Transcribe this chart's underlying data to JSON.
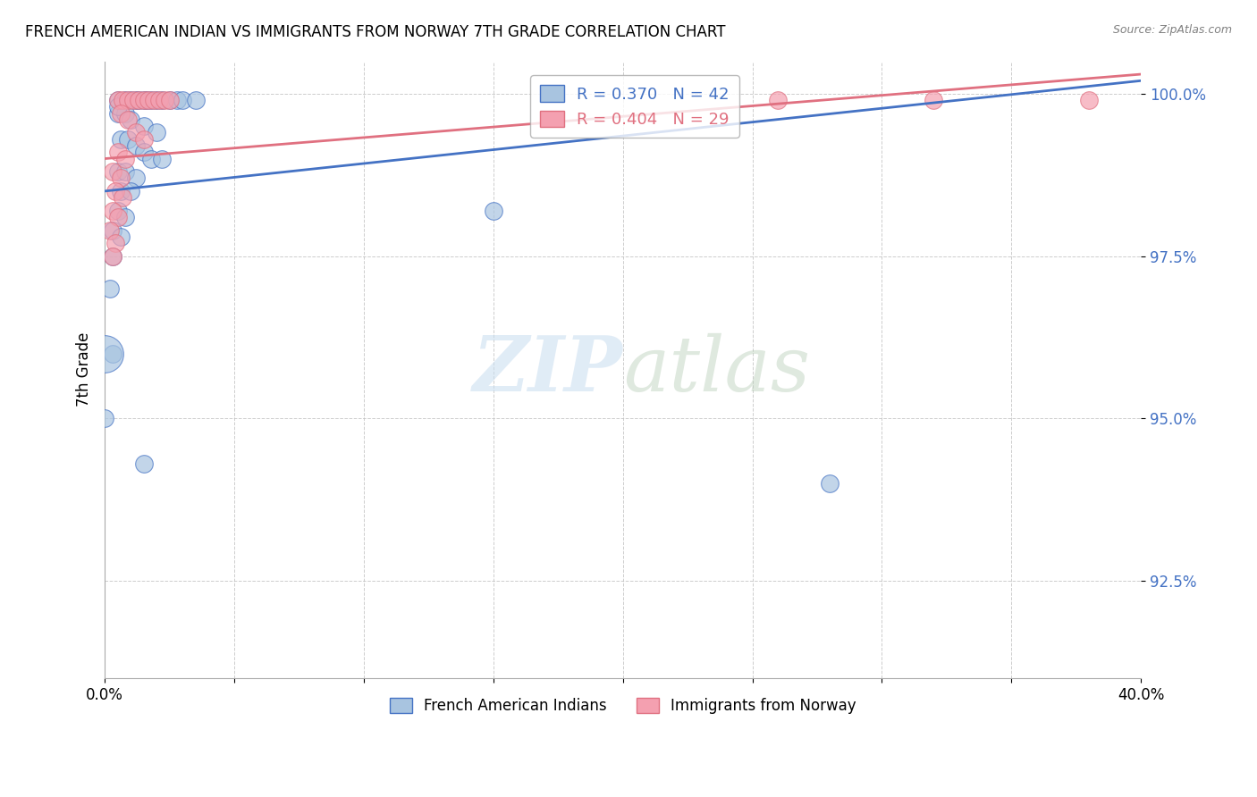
{
  "title": "FRENCH AMERICAN INDIAN VS IMMIGRANTS FROM NORWAY 7TH GRADE CORRELATION CHART",
  "source": "Source: ZipAtlas.com",
  "ylabel": "7th Grade",
  "y_tick_labels": [
    "92.5%",
    "95.0%",
    "97.5%",
    "100.0%"
  ],
  "y_tick_values": [
    0.925,
    0.95,
    0.975,
    1.0
  ],
  "xlim": [
    0.0,
    0.4
  ],
  "ylim": [
    0.91,
    1.005
  ],
  "watermark_zip": "ZIP",
  "watermark_atlas": "atlas",
  "legend_blue_label": "R = 0.370   N = 42",
  "legend_pink_label": "R = 0.404   N = 29",
  "blue_color": "#a8c4e0",
  "pink_color": "#f4a0b0",
  "blue_line_color": "#4472c4",
  "pink_line_color": "#e07080",
  "blue_scatter": [
    [
      0.005,
      0.999
    ],
    [
      0.008,
      0.999
    ],
    [
      0.01,
      0.999
    ],
    [
      0.012,
      0.999
    ],
    [
      0.013,
      0.999
    ],
    [
      0.015,
      0.999
    ],
    [
      0.016,
      0.999
    ],
    [
      0.018,
      0.999
    ],
    [
      0.02,
      0.999
    ],
    [
      0.022,
      0.999
    ],
    [
      0.025,
      0.999
    ],
    [
      0.028,
      0.999
    ],
    [
      0.03,
      0.999
    ],
    [
      0.035,
      0.999
    ],
    [
      0.005,
      0.997
    ],
    [
      0.008,
      0.997
    ],
    [
      0.01,
      0.996
    ],
    [
      0.015,
      0.995
    ],
    [
      0.02,
      0.994
    ],
    [
      0.006,
      0.993
    ],
    [
      0.009,
      0.993
    ],
    [
      0.012,
      0.992
    ],
    [
      0.015,
      0.991
    ],
    [
      0.018,
      0.99
    ],
    [
      0.022,
      0.99
    ],
    [
      0.005,
      0.988
    ],
    [
      0.008,
      0.988
    ],
    [
      0.012,
      0.987
    ],
    [
      0.006,
      0.985
    ],
    [
      0.01,
      0.985
    ],
    [
      0.005,
      0.982
    ],
    [
      0.008,
      0.981
    ],
    [
      0.003,
      0.979
    ],
    [
      0.006,
      0.978
    ],
    [
      0.003,
      0.975
    ],
    [
      0.002,
      0.97
    ],
    [
      0.003,
      0.96
    ],
    [
      0.0,
      0.95
    ],
    [
      0.015,
      0.943
    ],
    [
      0.005,
      0.998
    ],
    [
      0.15,
      0.982
    ],
    [
      0.28,
      0.94
    ]
  ],
  "pink_scatter": [
    [
      0.005,
      0.999
    ],
    [
      0.007,
      0.999
    ],
    [
      0.009,
      0.999
    ],
    [
      0.011,
      0.999
    ],
    [
      0.013,
      0.999
    ],
    [
      0.015,
      0.999
    ],
    [
      0.017,
      0.999
    ],
    [
      0.019,
      0.999
    ],
    [
      0.021,
      0.999
    ],
    [
      0.023,
      0.999
    ],
    [
      0.025,
      0.999
    ],
    [
      0.006,
      0.997
    ],
    [
      0.009,
      0.996
    ],
    [
      0.012,
      0.994
    ],
    [
      0.015,
      0.993
    ],
    [
      0.005,
      0.991
    ],
    [
      0.008,
      0.99
    ],
    [
      0.003,
      0.988
    ],
    [
      0.006,
      0.987
    ],
    [
      0.004,
      0.985
    ],
    [
      0.007,
      0.984
    ],
    [
      0.003,
      0.982
    ],
    [
      0.005,
      0.981
    ],
    [
      0.002,
      0.979
    ],
    [
      0.004,
      0.977
    ],
    [
      0.003,
      0.975
    ],
    [
      0.26,
      0.999
    ],
    [
      0.32,
      0.999
    ],
    [
      0.38,
      0.999
    ]
  ],
  "blue_large_dot": [
    0.0,
    0.96
  ],
  "blue_line": {
    "x0": 0.0,
    "y0": 0.985,
    "x1": 0.4,
    "y1": 1.002
  },
  "pink_line": {
    "x0": 0.0,
    "y0": 0.99,
    "x1": 0.4,
    "y1": 1.003
  },
  "bottom_legend_blue": "French American Indians",
  "bottom_legend_pink": "Immigrants from Norway"
}
